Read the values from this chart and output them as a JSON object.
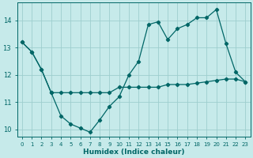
{
  "xlabel": "Humidex (Indice chaleur)",
  "background_color": "#c6eaea",
  "grid_color": "#9ecece",
  "line_color": "#006666",
  "xlim": [
    -0.5,
    23.5
  ],
  "ylim": [
    9.75,
    14.65
  ],
  "yticks": [
    10,
    11,
    12,
    13,
    14
  ],
  "xticks": [
    0,
    1,
    2,
    3,
    4,
    5,
    6,
    7,
    8,
    9,
    10,
    11,
    12,
    13,
    14,
    15,
    16,
    17,
    18,
    19,
    20,
    21,
    22,
    23
  ],
  "line1_x": [
    0,
    1,
    2,
    3,
    4,
    5,
    6,
    7,
    8,
    9,
    10,
    11,
    12,
    13,
    14,
    15,
    16,
    17,
    18,
    19,
    20,
    21,
    22,
    23
  ],
  "line1_y": [
    13.2,
    12.85,
    12.2,
    11.35,
    11.35,
    11.35,
    11.35,
    11.35,
    11.35,
    11.35,
    11.55,
    11.55,
    11.55,
    11.55,
    11.55,
    11.65,
    11.65,
    11.65,
    11.7,
    11.75,
    11.8,
    11.85,
    11.85,
    11.75
  ],
  "line2_x": [
    0,
    1,
    2,
    3,
    4,
    5,
    6,
    7,
    8,
    9,
    10,
    11,
    12,
    13,
    14,
    15,
    16,
    17,
    18,
    19,
    20,
    21,
    22,
    23
  ],
  "line2_y": [
    13.2,
    12.85,
    12.2,
    11.35,
    10.5,
    10.2,
    10.05,
    9.9,
    10.35,
    10.85,
    11.2,
    12.0,
    12.5,
    13.85,
    13.95,
    13.3,
    13.7,
    13.85,
    14.1,
    14.1,
    14.4,
    13.15,
    12.1,
    11.75
  ]
}
